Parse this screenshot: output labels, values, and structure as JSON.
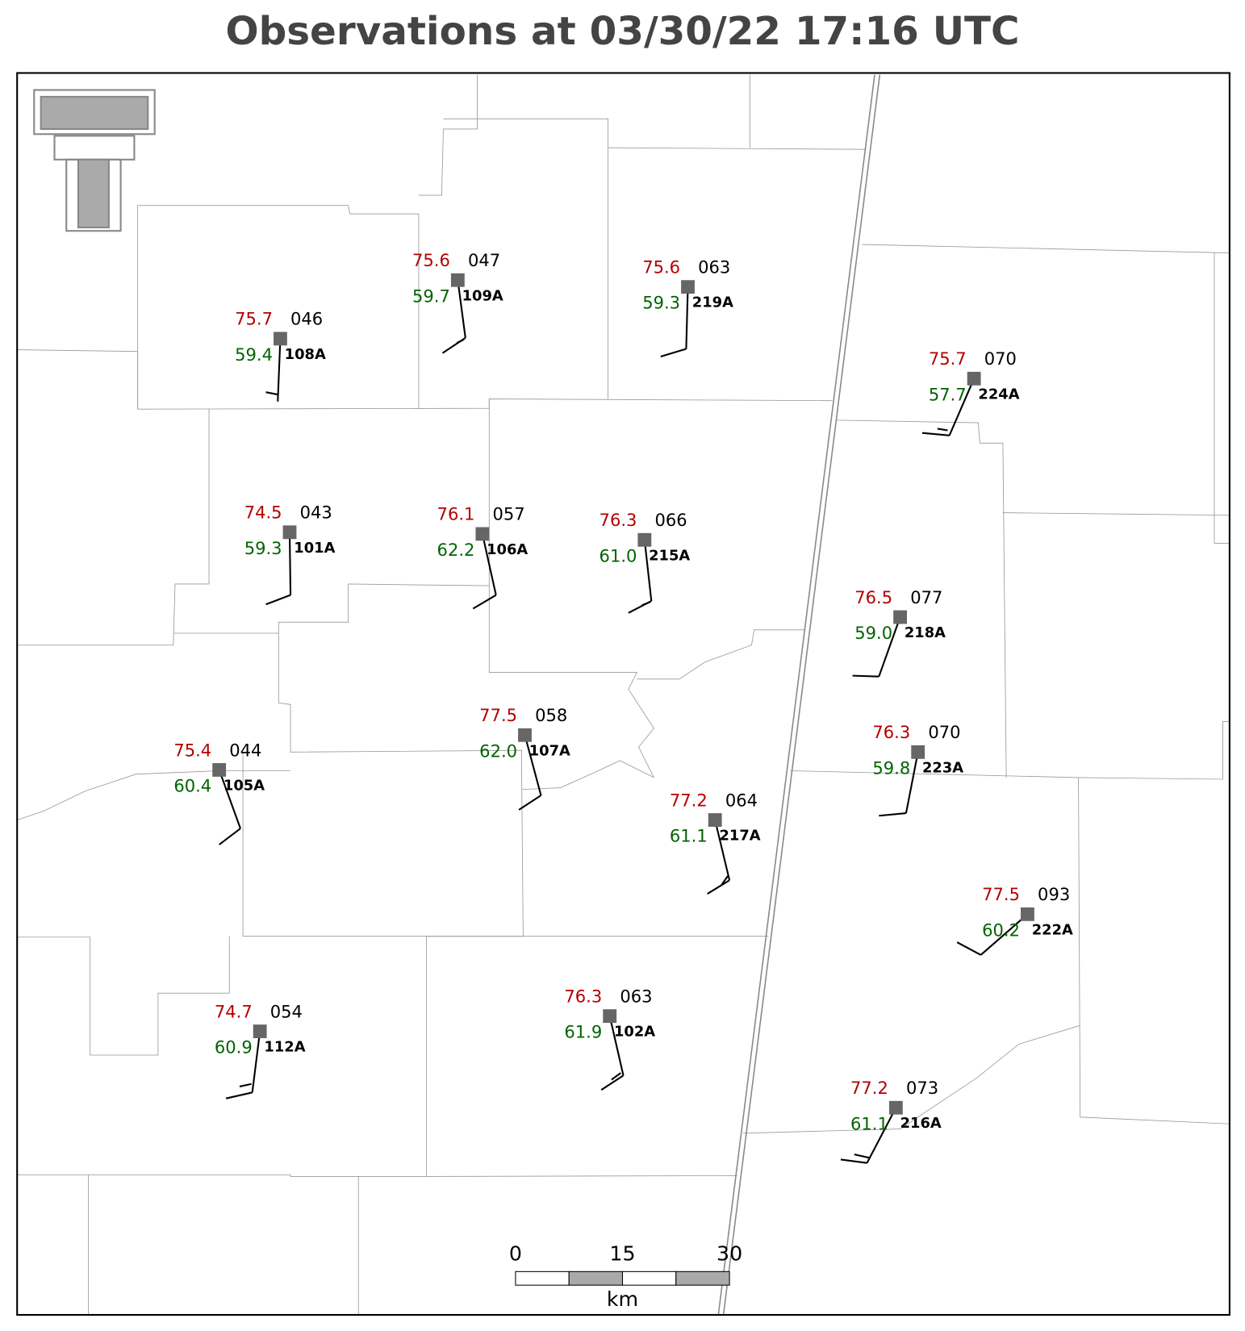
{
  "title": "Observations at 03/30/22 17:16 UTC",
  "stations": [
    {
      "temperature": "75.7",
      "dewpoint": "59.4",
      "pressure": "046",
      "id": "108A"
    },
    {
      "temperature": "75.6",
      "dewpoint": "59.7",
      "pressure": "047",
      "id": "109A"
    },
    {
      "temperature": "75.6",
      "dewpoint": "59.3",
      "pressure": "063",
      "id": "219A"
    },
    {
      "temperature": "75.7",
      "dewpoint": "57.7",
      "pressure": "070",
      "id": "224A"
    },
    {
      "temperature": "74.5",
      "dewpoint": "59.3",
      "pressure": "043",
      "id": "101A"
    },
    {
      "temperature": "76.1",
      "dewpoint": "62.2",
      "pressure": "057",
      "id": "106A"
    },
    {
      "temperature": "76.3",
      "dewpoint": "61.0",
      "pressure": "066",
      "id": "215A"
    },
    {
      "temperature": "76.5",
      "dewpoint": "59.0",
      "pressure": "077",
      "id": "218A"
    },
    {
      "temperature": "77.5",
      "dewpoint": "62.0",
      "pressure": "058",
      "id": "107A"
    },
    {
      "temperature": "75.4",
      "dewpoint": "60.4",
      "pressure": "044",
      "id": "105A"
    },
    {
      "temperature": "76.3",
      "dewpoint": "59.8",
      "pressure": "070",
      "id": "223A"
    },
    {
      "temperature": "77.2",
      "dewpoint": "61.1",
      "pressure": "064",
      "id": "217A"
    },
    {
      "temperature": "77.5",
      "dewpoint": "60.2",
      "pressure": "093",
      "id": "222A"
    },
    {
      "temperature": "74.7",
      "dewpoint": "60.9",
      "pressure": "054",
      "id": "112A"
    },
    {
      "temperature": "76.3",
      "dewpoint": "61.9",
      "pressure": "063",
      "id": "102A"
    },
    {
      "temperature": "77.2",
      "dewpoint": "61.1",
      "pressure": "073",
      "id": "216A"
    }
  ],
  "scale_bar": {
    "ticks": [
      "0",
      "15",
      "30"
    ],
    "unit": "km"
  }
}
